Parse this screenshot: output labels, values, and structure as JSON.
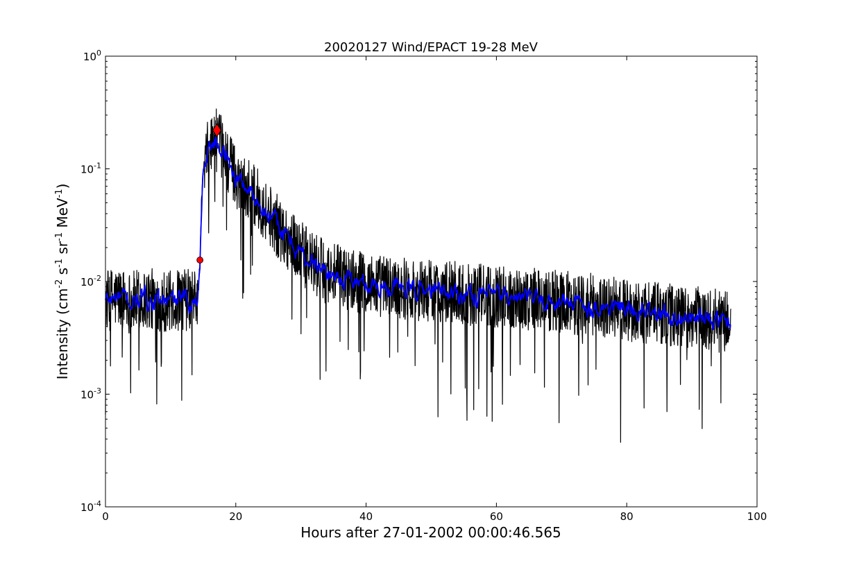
{
  "chart_data": {
    "type": "line",
    "title": "20020127 Wind/EPACT 19-28 MeV",
    "xlabel": "Hours after 27-01-2002 00:00:46.565",
    "ylabel_parts": [
      "Intensity (cm",
      "-2",
      " s",
      "-1",
      " sr",
      "-1",
      " MeV",
      "-1",
      ")"
    ],
    "xlim": [
      0,
      100
    ],
    "ylim": [
      0.0001,
      1
    ],
    "yscale": "log",
    "xticks": [
      0,
      20,
      40,
      60,
      80,
      100
    ],
    "xtick_labels": [
      "0",
      "20",
      "40",
      "60",
      "80",
      "100"
    ],
    "yticks": [
      0.0001,
      0.001,
      0.01,
      0.1,
      1
    ],
    "ytick_labels": [
      {
        "base": "10",
        "exp": "-4"
      },
      {
        "base": "10",
        "exp": "-3"
      },
      {
        "base": "10",
        "exp": "-2"
      },
      {
        "base": "10",
        "exp": "-1"
      },
      {
        "base": "10",
        "exp": "0"
      }
    ],
    "grid": false,
    "series": [
      {
        "kind": "raw",
        "color": "#000000",
        "x": [
          0,
          2,
          4,
          6,
          8,
          10,
          12,
          14,
          14.3,
          14.5,
          14.7,
          15,
          16,
          17,
          18,
          19,
          20,
          22,
          24,
          26,
          28,
          30,
          32,
          34,
          36,
          40,
          45,
          50,
          55,
          60,
          65,
          70,
          75,
          80,
          85,
          90,
          95,
          96
        ],
        "y": [
          0.0068,
          0.0072,
          0.0065,
          0.007,
          0.0068,
          0.0066,
          0.0069,
          0.0068,
          0.009,
          0.015,
          0.045,
          0.1,
          0.16,
          0.18,
          0.15,
          0.11,
          0.085,
          0.065,
          0.048,
          0.033,
          0.024,
          0.018,
          0.014,
          0.012,
          0.011,
          0.0095,
          0.0088,
          0.0083,
          0.0078,
          0.0074,
          0.007,
          0.0066,
          0.0062,
          0.0056,
          0.0052,
          0.0048,
          0.0044,
          0.0042
        ],
        "noise_decades": 0.28
      },
      {
        "kind": "smoothed",
        "color": "#0000ff",
        "x": [
          0,
          2,
          4,
          6,
          8,
          10,
          12,
          14,
          14.3,
          14.5,
          14.7,
          15,
          16,
          17,
          18,
          19,
          20,
          22,
          24,
          26,
          28,
          30,
          32,
          34,
          36,
          40,
          45,
          50,
          55,
          60,
          65,
          70,
          75,
          80,
          85,
          90,
          95,
          96
        ],
        "y": [
          0.0068,
          0.0072,
          0.0065,
          0.007,
          0.0068,
          0.0066,
          0.0069,
          0.0068,
          0.009,
          0.015,
          0.045,
          0.1,
          0.16,
          0.18,
          0.15,
          0.11,
          0.085,
          0.065,
          0.048,
          0.033,
          0.024,
          0.018,
          0.014,
          0.012,
          0.011,
          0.0095,
          0.0088,
          0.0083,
          0.0078,
          0.0074,
          0.007,
          0.0066,
          0.0062,
          0.0056,
          0.0052,
          0.0048,
          0.0044,
          0.0042
        ],
        "noise_decades": 0.06
      }
    ],
    "markers": [
      {
        "shape": "circle",
        "x": 14.5,
        "y": 0.0155,
        "color": "#ff0000"
      },
      {
        "shape": "diamond",
        "x": 17.1,
        "y": 0.22,
        "color": "#ff0000"
      }
    ]
  }
}
